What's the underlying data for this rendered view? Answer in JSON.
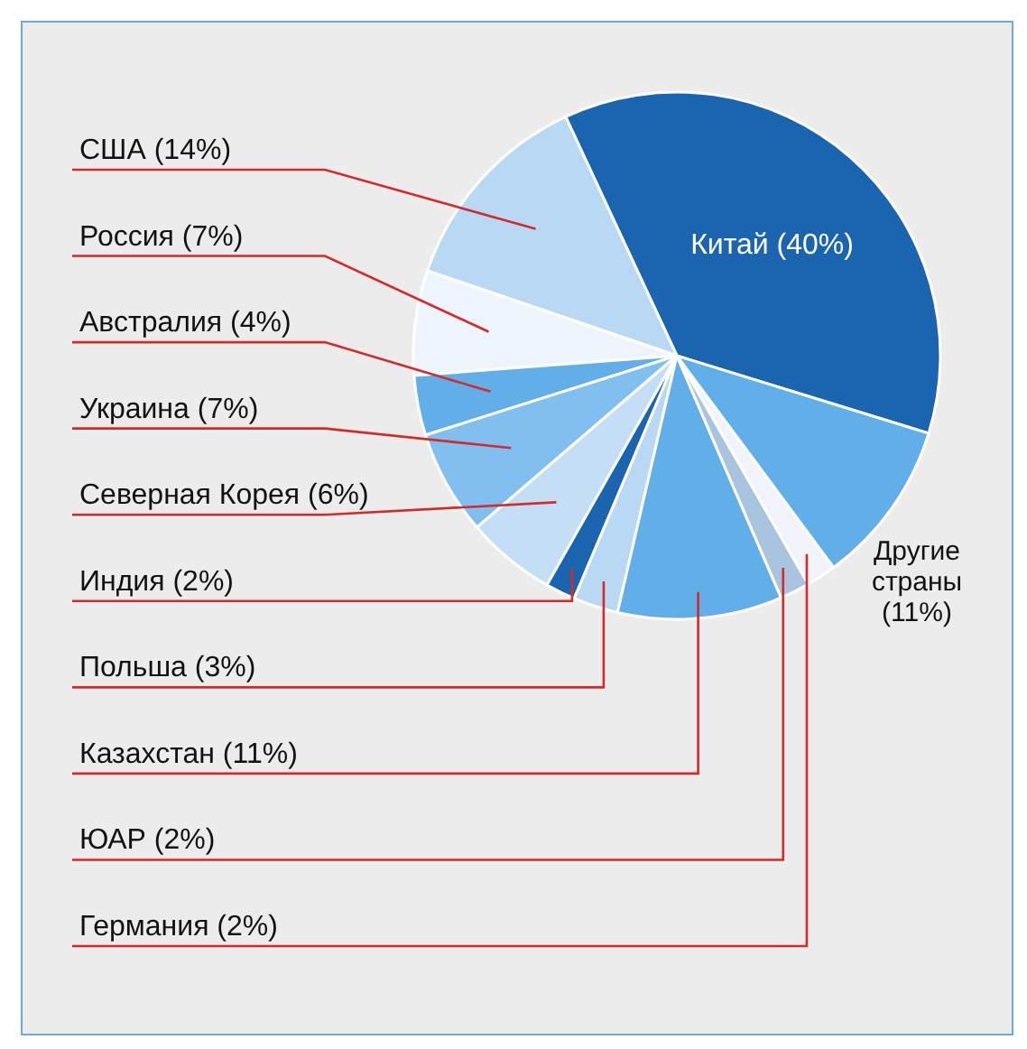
{
  "chart_data": {
    "type": "pie",
    "categories": [
      "Китай (40%)",
      "США (14%)",
      "Россия (7%)",
      "Австралия (4%)",
      "Украина (7%)",
      "Северная Корея (6%)",
      "Индия (2%)",
      "Польша (3%)",
      "Казахстан (11%)",
      "ЮАР (2%)",
      "Германия (2%)",
      "Другие страны (11%)"
    ],
    "values": [
      40,
      14,
      7,
      4,
      7,
      6,
      2,
      3,
      11,
      2,
      2,
      11
    ],
    "colors": [
      "#1a64b0",
      "#b8d8f4",
      "#eef4fc",
      "#62aee8",
      "#80bff0",
      "#c4def6",
      "#1a64b0",
      "#b8d8f4",
      "#62aee8",
      "#a8c4de",
      "#f0f4fa",
      "#62aee8"
    ]
  }
}
